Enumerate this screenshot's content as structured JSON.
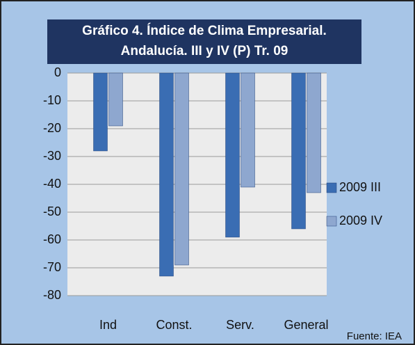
{
  "chart_data": {
    "type": "bar",
    "title": [
      "Gráfico 4. Índice de Clima Empresarial.",
      "Andalucía. III y IV (P) Tr. 09"
    ],
    "categories": [
      "Ind",
      "Const.",
      "Serv.",
      "General"
    ],
    "series": [
      {
        "name": "2009 III",
        "color": "#3a6db3",
        "values": [
          -28,
          -73,
          -59,
          -56
        ]
      },
      {
        "name": "2009 IV",
        "color": "#8ea7cf",
        "values": [
          -19,
          -69,
          -41,
          -43
        ]
      }
    ],
    "ylim": [
      -80,
      0
    ],
    "yticks": [
      0,
      -10,
      -20,
      -30,
      -40,
      -50,
      -60,
      -70,
      -80
    ],
    "grid": true,
    "legend": "right",
    "annotation": "Fuente: IEA"
  }
}
